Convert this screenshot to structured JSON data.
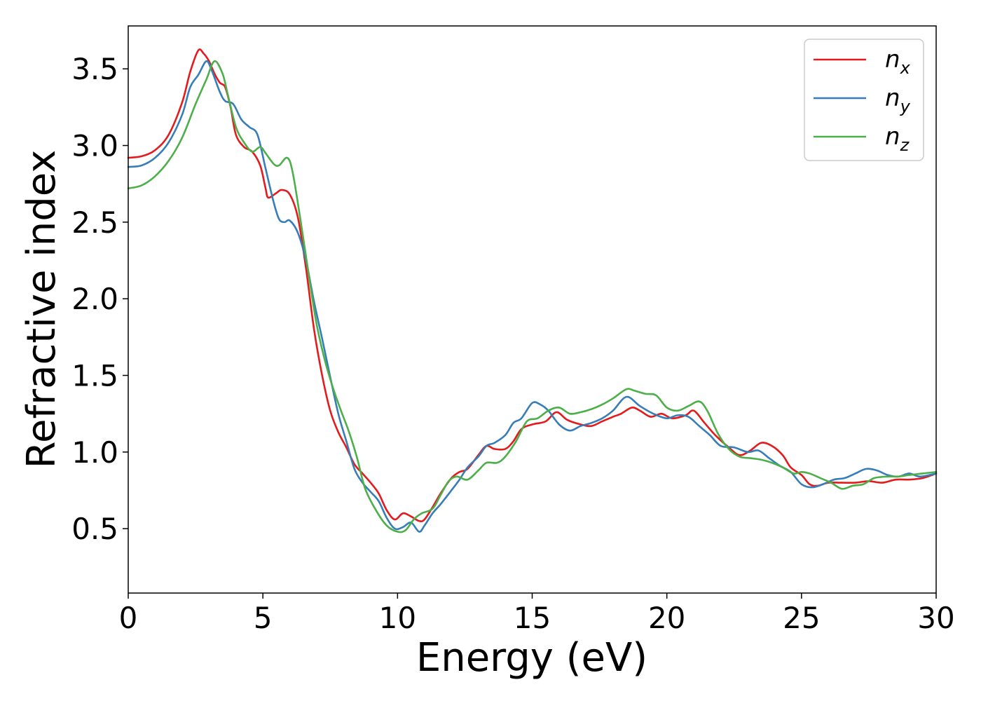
{
  "chart_data": {
    "type": "line",
    "title": "",
    "xlabel": "Energy (eV)",
    "ylabel": "Refractive index",
    "xlim": [
      0,
      30
    ],
    "ylim": [
      0.08,
      3.78
    ],
    "xticks": [
      0,
      5,
      10,
      15,
      20,
      25,
      30
    ],
    "xtick_labels": [
      "0",
      "5",
      "10",
      "15",
      "20",
      "25",
      "30"
    ],
    "yticks": [
      0.5,
      1.0,
      1.5,
      2.0,
      2.5,
      3.0,
      3.5
    ],
    "ytick_labels": [
      "0.5",
      "1.0",
      "1.5",
      "2.0",
      "2.5",
      "3.0",
      "3.5"
    ],
    "grid": false,
    "legend_position": "top-right",
    "series": [
      {
        "name": "n_x",
        "label_main": "n",
        "label_sub": "x",
        "color": "#e41a1c",
        "points": [
          [
            0,
            2.92
          ],
          [
            0.5,
            2.93
          ],
          [
            1,
            2.97
          ],
          [
            1.5,
            3.07
          ],
          [
            2,
            3.28
          ],
          [
            2.3,
            3.48
          ],
          [
            2.6,
            3.62
          ],
          [
            2.8,
            3.6
          ],
          [
            3,
            3.55
          ],
          [
            3.2,
            3.47
          ],
          [
            3.4,
            3.41
          ],
          [
            3.6,
            3.38
          ],
          [
            3.8,
            3.25
          ],
          [
            4,
            3.07
          ],
          [
            4.3,
            2.99
          ],
          [
            4.6,
            2.96
          ],
          [
            4.9,
            2.87
          ],
          [
            5.1,
            2.72
          ],
          [
            5.2,
            2.66
          ],
          [
            5.5,
            2.69
          ],
          [
            5.7,
            2.71
          ],
          [
            6,
            2.68
          ],
          [
            6.3,
            2.53
          ],
          [
            6.6,
            2.2
          ],
          [
            6.9,
            1.8
          ],
          [
            7.2,
            1.5
          ],
          [
            7.5,
            1.27
          ],
          [
            7.8,
            1.13
          ],
          [
            8.1,
            1.03
          ],
          [
            8.4,
            0.92
          ],
          [
            8.7,
            0.86
          ],
          [
            9,
            0.8
          ],
          [
            9.3,
            0.73
          ],
          [
            9.6,
            0.62
          ],
          [
            9.9,
            0.56
          ],
          [
            10.2,
            0.6
          ],
          [
            10.5,
            0.58
          ],
          [
            10.8,
            0.55
          ],
          [
            11,
            0.56
          ],
          [
            11.3,
            0.64
          ],
          [
            11.6,
            0.73
          ],
          [
            12,
            0.83
          ],
          [
            12.3,
            0.87
          ],
          [
            12.6,
            0.89
          ],
          [
            13,
            0.98
          ],
          [
            13.3,
            1.04
          ],
          [
            13.6,
            1.02
          ],
          [
            14,
            1.02
          ],
          [
            14.3,
            1.07
          ],
          [
            14.6,
            1.15
          ],
          [
            15,
            1.18
          ],
          [
            15.5,
            1.2
          ],
          [
            15.9,
            1.26
          ],
          [
            16.3,
            1.21
          ],
          [
            16.8,
            1.18
          ],
          [
            17.2,
            1.17
          ],
          [
            17.6,
            1.2
          ],
          [
            18,
            1.23
          ],
          [
            18.3,
            1.25
          ],
          [
            18.7,
            1.29
          ],
          [
            19,
            1.27
          ],
          [
            19.4,
            1.23
          ],
          [
            19.8,
            1.25
          ],
          [
            20.2,
            1.22
          ],
          [
            20.7,
            1.24
          ],
          [
            21,
            1.27
          ],
          [
            21.4,
            1.19
          ],
          [
            21.8,
            1.11
          ],
          [
            22.3,
            1.03
          ],
          [
            22.7,
            0.98
          ],
          [
            23.1,
            1.01
          ],
          [
            23.5,
            1.06
          ],
          [
            23.9,
            1.04
          ],
          [
            24.3,
            0.98
          ],
          [
            24.6,
            0.9
          ],
          [
            25,
            0.85
          ],
          [
            25.3,
            0.79
          ],
          [
            25.6,
            0.78
          ],
          [
            26,
            0.8
          ],
          [
            26.5,
            0.8
          ],
          [
            27,
            0.8
          ],
          [
            27.5,
            0.81
          ],
          [
            28,
            0.8
          ],
          [
            28.5,
            0.82
          ],
          [
            29,
            0.82
          ],
          [
            29.5,
            0.83
          ],
          [
            30,
            0.86
          ]
        ]
      },
      {
        "name": "n_y",
        "label_main": "n",
        "label_sub": "y",
        "color": "#377eb8",
        "points": [
          [
            0,
            2.86
          ],
          [
            0.5,
            2.87
          ],
          [
            1,
            2.92
          ],
          [
            1.5,
            3.02
          ],
          [
            2,
            3.2
          ],
          [
            2.3,
            3.38
          ],
          [
            2.6,
            3.46
          ],
          [
            2.9,
            3.55
          ],
          [
            3.1,
            3.49
          ],
          [
            3.4,
            3.35
          ],
          [
            3.6,
            3.29
          ],
          [
            3.9,
            3.27
          ],
          [
            4.2,
            3.17
          ],
          [
            4.5,
            3.12
          ],
          [
            4.8,
            3.07
          ],
          [
            5.1,
            2.85
          ],
          [
            5.4,
            2.63
          ],
          [
            5.6,
            2.52
          ],
          [
            5.8,
            2.5
          ],
          [
            6,
            2.51
          ],
          [
            6.3,
            2.43
          ],
          [
            6.6,
            2.25
          ],
          [
            6.9,
            1.98
          ],
          [
            7.2,
            1.74
          ],
          [
            7.5,
            1.49
          ],
          [
            7.8,
            1.25
          ],
          [
            8.1,
            1.07
          ],
          [
            8.4,
            0.89
          ],
          [
            8.7,
            0.8
          ],
          [
            9,
            0.74
          ],
          [
            9.3,
            0.68
          ],
          [
            9.6,
            0.57
          ],
          [
            9.9,
            0.5
          ],
          [
            10.2,
            0.51
          ],
          [
            10.5,
            0.54
          ],
          [
            10.8,
            0.48
          ],
          [
            11,
            0.52
          ],
          [
            11.3,
            0.6
          ],
          [
            11.6,
            0.66
          ],
          [
            12,
            0.75
          ],
          [
            12.3,
            0.82
          ],
          [
            12.6,
            0.9
          ],
          [
            13,
            0.97
          ],
          [
            13.3,
            1.04
          ],
          [
            13.6,
            1.06
          ],
          [
            14,
            1.11
          ],
          [
            14.3,
            1.19
          ],
          [
            14.6,
            1.22
          ],
          [
            15,
            1.32
          ],
          [
            15.3,
            1.31
          ],
          [
            15.6,
            1.27
          ],
          [
            16,
            1.18
          ],
          [
            16.4,
            1.14
          ],
          [
            16.8,
            1.17
          ],
          [
            17.2,
            1.19
          ],
          [
            17.6,
            1.22
          ],
          [
            18,
            1.27
          ],
          [
            18.5,
            1.36
          ],
          [
            19,
            1.3
          ],
          [
            19.5,
            1.25
          ],
          [
            20,
            1.22
          ],
          [
            20.4,
            1.24
          ],
          [
            20.8,
            1.23
          ],
          [
            21.2,
            1.17
          ],
          [
            21.6,
            1.11
          ],
          [
            22,
            1.04
          ],
          [
            22.5,
            1.03
          ],
          [
            23,
            1.0
          ],
          [
            23.4,
            1.01
          ],
          [
            23.8,
            0.96
          ],
          [
            24.2,
            0.91
          ],
          [
            24.6,
            0.87
          ],
          [
            25,
            0.79
          ],
          [
            25.4,
            0.77
          ],
          [
            25.8,
            0.79
          ],
          [
            26.2,
            0.82
          ],
          [
            26.6,
            0.83
          ],
          [
            27,
            0.86
          ],
          [
            27.4,
            0.89
          ],
          [
            27.8,
            0.88
          ],
          [
            28.2,
            0.85
          ],
          [
            28.6,
            0.84
          ],
          [
            29,
            0.86
          ],
          [
            29.4,
            0.84
          ],
          [
            30,
            0.86
          ]
        ]
      },
      {
        "name": "n_z",
        "label_main": "n",
        "label_sub": "z",
        "color": "#4daf4a",
        "points": [
          [
            0,
            2.72
          ],
          [
            0.5,
            2.74
          ],
          [
            1,
            2.8
          ],
          [
            1.5,
            2.9
          ],
          [
            2,
            3.05
          ],
          [
            2.5,
            3.27
          ],
          [
            2.9,
            3.43
          ],
          [
            3.2,
            3.55
          ],
          [
            3.5,
            3.47
          ],
          [
            3.7,
            3.33
          ],
          [
            4,
            3.12
          ],
          [
            4.3,
            3.02
          ],
          [
            4.6,
            2.96
          ],
          [
            4.9,
            2.99
          ],
          [
            5.1,
            2.95
          ],
          [
            5.4,
            2.88
          ],
          [
            5.6,
            2.87
          ],
          [
            5.9,
            2.92
          ],
          [
            6.1,
            2.83
          ],
          [
            6.4,
            2.51
          ],
          [
            6.7,
            2.16
          ],
          [
            7,
            1.83
          ],
          [
            7.3,
            1.6
          ],
          [
            7.6,
            1.42
          ],
          [
            7.9,
            1.27
          ],
          [
            8.2,
            1.13
          ],
          [
            8.5,
            0.96
          ],
          [
            8.8,
            0.76
          ],
          [
            9.2,
            0.62
          ],
          [
            9.6,
            0.52
          ],
          [
            10,
            0.48
          ],
          [
            10.3,
            0.49
          ],
          [
            10.6,
            0.56
          ],
          [
            10.9,
            0.6
          ],
          [
            11.3,
            0.63
          ],
          [
            11.6,
            0.72
          ],
          [
            11.9,
            0.81
          ],
          [
            12.2,
            0.84
          ],
          [
            12.6,
            0.82
          ],
          [
            13,
            0.88
          ],
          [
            13.3,
            0.93
          ],
          [
            13.7,
            0.93
          ],
          [
            14,
            0.97
          ],
          [
            14.4,
            1.07
          ],
          [
            14.8,
            1.2
          ],
          [
            15.2,
            1.22
          ],
          [
            15.6,
            1.27
          ],
          [
            16,
            1.29
          ],
          [
            16.4,
            1.25
          ],
          [
            16.8,
            1.26
          ],
          [
            17.2,
            1.28
          ],
          [
            17.6,
            1.31
          ],
          [
            18,
            1.35
          ],
          [
            18.5,
            1.41
          ],
          [
            18.8,
            1.4
          ],
          [
            19.2,
            1.38
          ],
          [
            19.6,
            1.37
          ],
          [
            20,
            1.29
          ],
          [
            20.4,
            1.27
          ],
          [
            20.8,
            1.3
          ],
          [
            21.2,
            1.33
          ],
          [
            21.5,
            1.27
          ],
          [
            21.9,
            1.12
          ],
          [
            22.3,
            1.02
          ],
          [
            22.7,
            0.97
          ],
          [
            23.1,
            0.96
          ],
          [
            23.5,
            0.95
          ],
          [
            23.9,
            0.93
          ],
          [
            24.3,
            0.9
          ],
          [
            24.7,
            0.86
          ],
          [
            25,
            0.87
          ],
          [
            25.3,
            0.86
          ],
          [
            25.7,
            0.83
          ],
          [
            26.1,
            0.8
          ],
          [
            26.5,
            0.76
          ],
          [
            26.9,
            0.78
          ],
          [
            27.3,
            0.79
          ],
          [
            27.7,
            0.83
          ],
          [
            28.2,
            0.84
          ],
          [
            28.6,
            0.84
          ],
          [
            29,
            0.85
          ],
          [
            29.5,
            0.86
          ],
          [
            30,
            0.87
          ]
        ]
      }
    ]
  }
}
